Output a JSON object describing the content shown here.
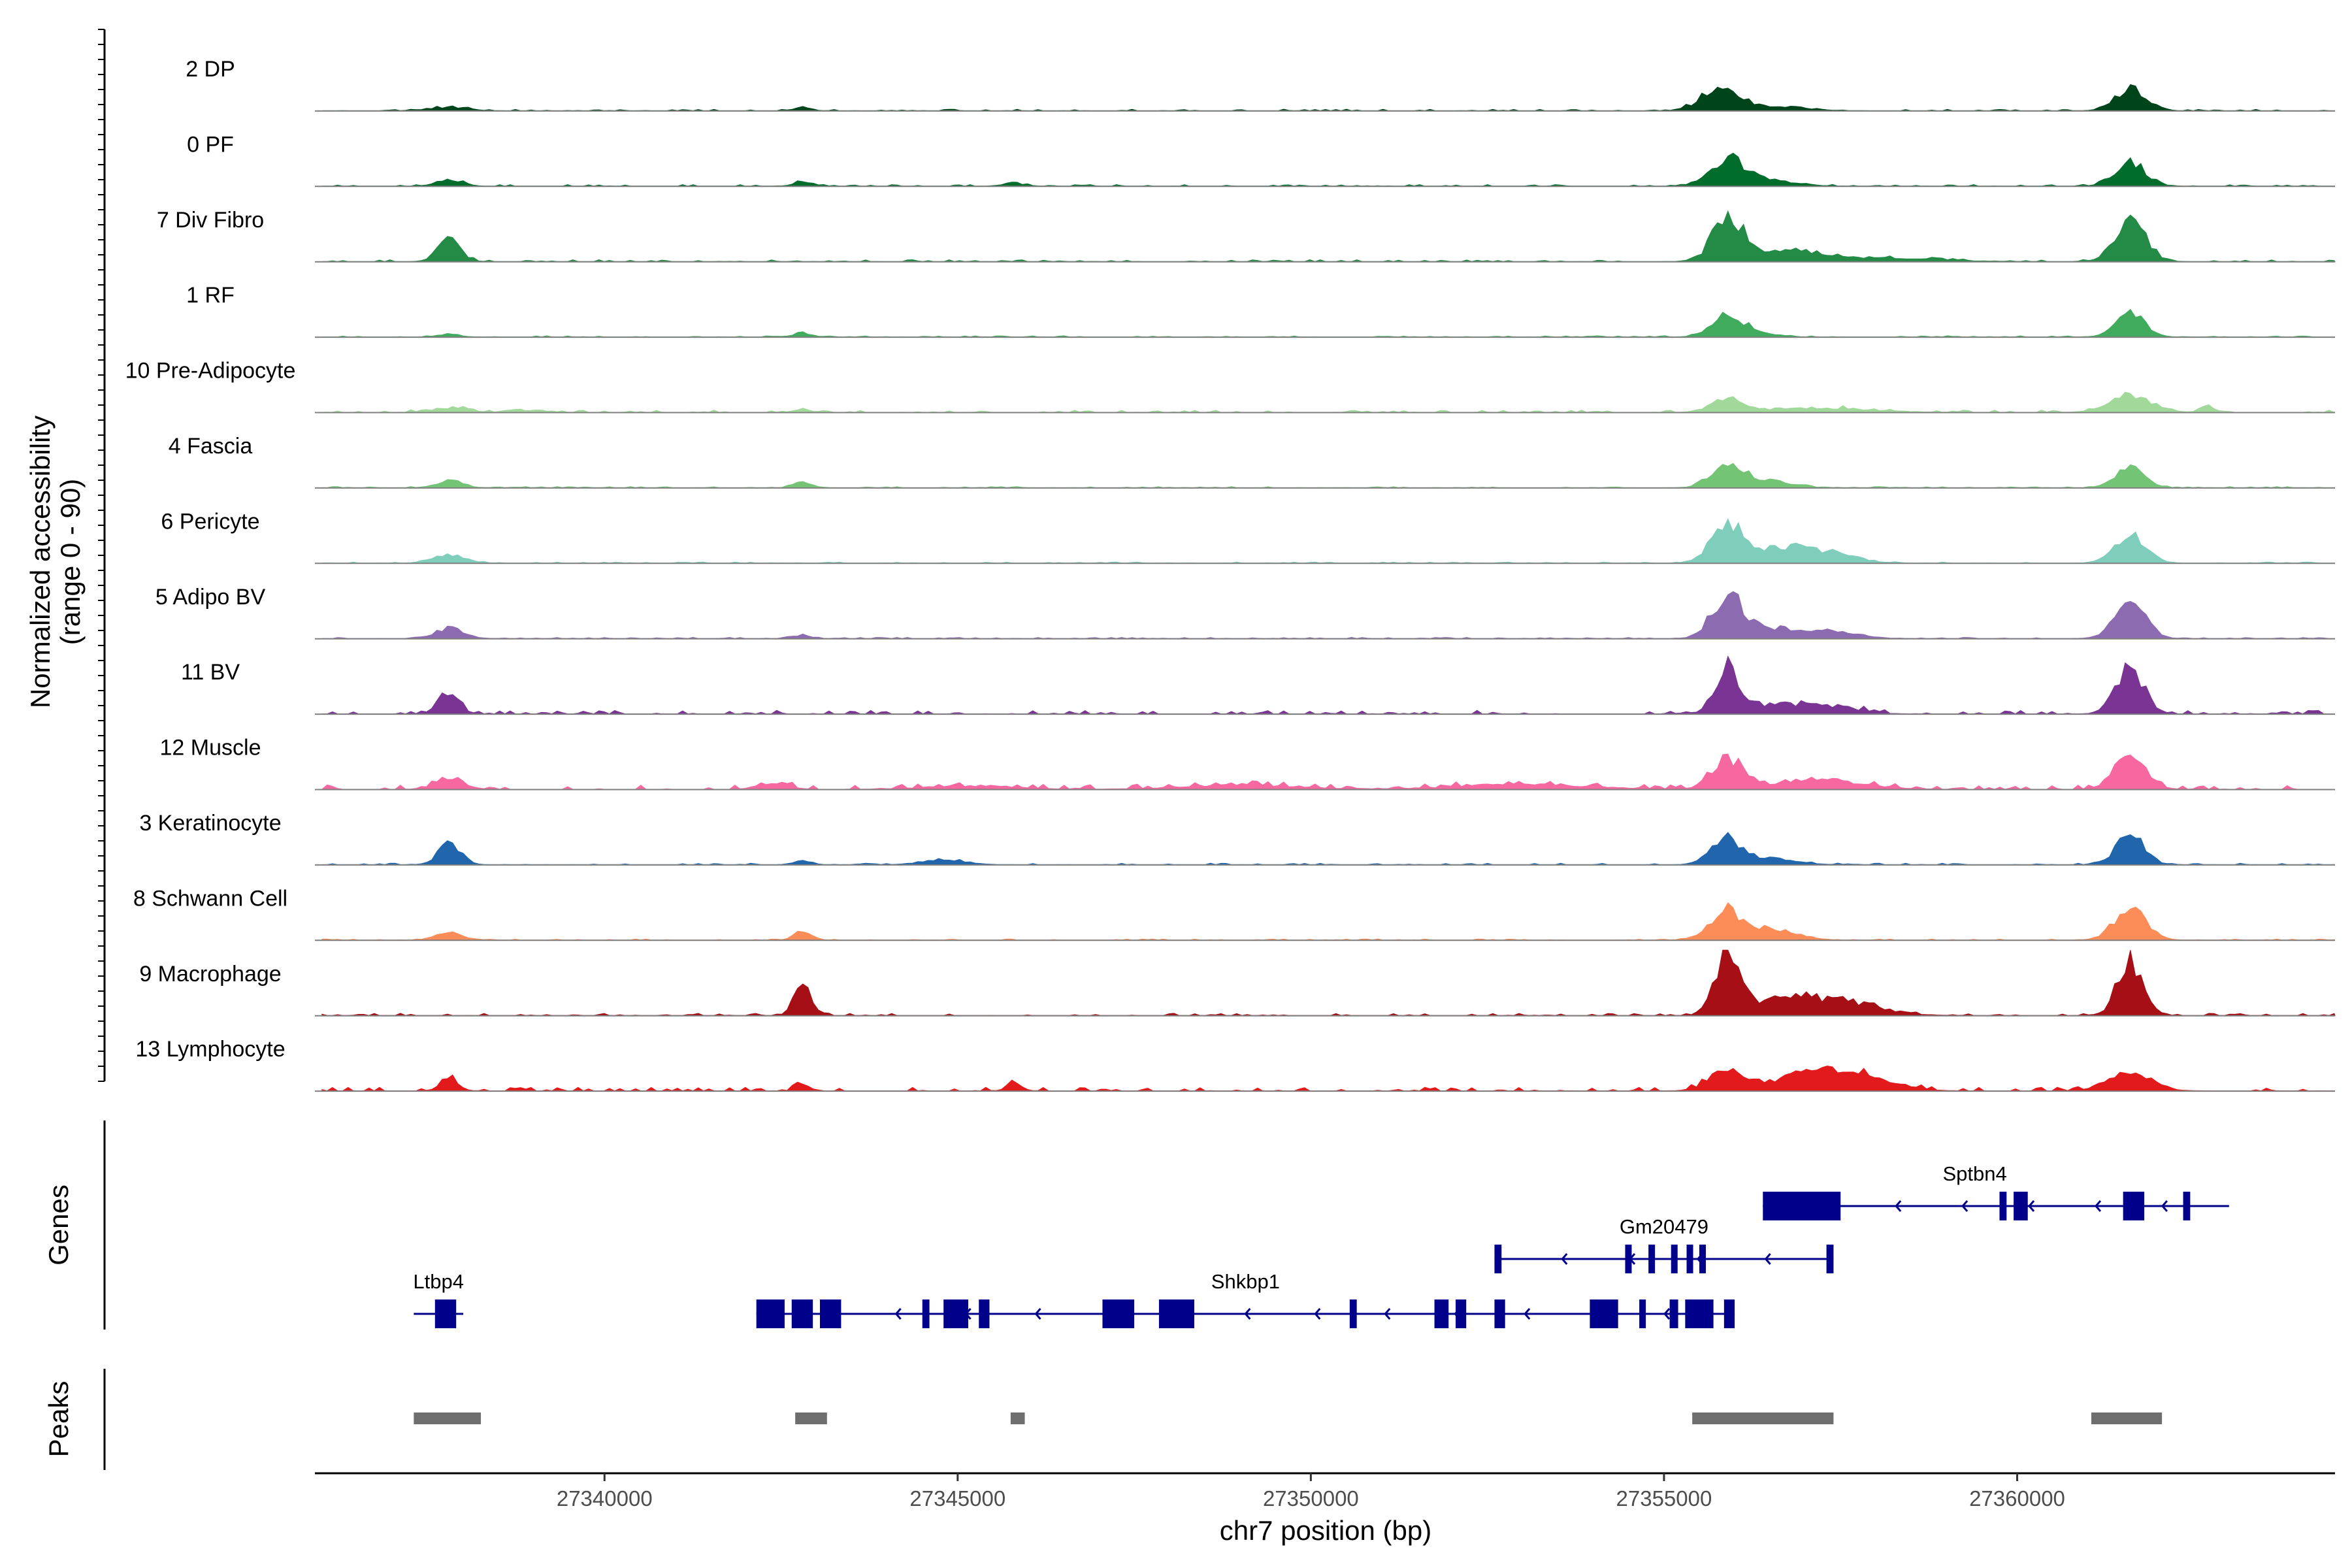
{
  "chart_data": {
    "type": "area",
    "title": "",
    "xlabel": "chr7 position (bp)",
    "ylabel": "Normalized accessibility",
    "ylabel_sub": "(range 0 - 90)",
    "y_range": [
      0,
      90
    ],
    "xlim": [
      27335900,
      27364500
    ],
    "x_ticks": [
      {
        "value": 27340000,
        "label": "27340000"
      },
      {
        "value": 27345000,
        "label": "27345000"
      },
      {
        "value": 27350000,
        "label": "27350000"
      },
      {
        "value": 27355000,
        "label": "27355000"
      },
      {
        "value": 27360000,
        "label": "27360000"
      }
    ],
    "track_start": 27336000,
    "track_end": 27364500,
    "series": [
      {
        "name": "2 DP",
        "color": "#00441B",
        "noise": 2.0,
        "peaks": [
          [
            27337800,
            5,
            250
          ],
          [
            27342800,
            4,
            120
          ],
          [
            27355800,
            32,
            260
          ],
          [
            27356600,
            6,
            400
          ],
          [
            27361600,
            30,
            220
          ]
        ]
      },
      {
        "name": "0 PF",
        "color": "#006D2C",
        "noise": 2.0,
        "peaks": [
          [
            27337800,
            9,
            180
          ],
          [
            27342800,
            6,
            120
          ],
          [
            27345800,
            4,
            150
          ],
          [
            27355900,
            35,
            240
          ],
          [
            27356500,
            8,
            350
          ],
          [
            27361600,
            32,
            220
          ]
        ]
      },
      {
        "name": "7 Div Fibro",
        "color": "#238B45",
        "noise": 2.5,
        "peaks": [
          [
            27337800,
            30,
            160
          ],
          [
            27355900,
            65,
            200
          ],
          [
            27356700,
            14,
            500
          ],
          [
            27358000,
            5,
            800
          ],
          [
            27361600,
            55,
            220
          ]
        ]
      },
      {
        "name": "1 RF",
        "color": "#41AB5D",
        "noise": 1.5,
        "peaks": [
          [
            27337800,
            4,
            150
          ],
          [
            27342800,
            6,
            120
          ],
          [
            27355900,
            28,
            220
          ],
          [
            27356300,
            6,
            250
          ],
          [
            27361600,
            32,
            200
          ]
        ]
      },
      {
        "name": "10 Pre-Adipocyte",
        "color": "#A1D99B",
        "noise": 3.0,
        "peaks": [
          [
            27337800,
            6,
            250
          ],
          [
            27339000,
            3,
            200
          ],
          [
            27342800,
            4,
            120
          ],
          [
            27355900,
            18,
            220
          ],
          [
            27357200,
            6,
            700
          ],
          [
            27361600,
            22,
            300
          ],
          [
            27362700,
            8,
            100
          ]
        ]
      },
      {
        "name": "4 Fascia",
        "color": "#74C476",
        "noise": 1.5,
        "peaks": [
          [
            27337800,
            10,
            180
          ],
          [
            27342800,
            8,
            120
          ],
          [
            27355900,
            38,
            220
          ],
          [
            27356500,
            10,
            300
          ],
          [
            27361600,
            30,
            200
          ]
        ]
      },
      {
        "name": "6 Pericyte",
        "color": "#7FCDBB",
        "noise": 1.5,
        "peaks": [
          [
            27337800,
            12,
            220
          ],
          [
            27355900,
            55,
            230
          ],
          [
            27356700,
            22,
            350
          ],
          [
            27357400,
            12,
            350
          ],
          [
            27361600,
            42,
            220
          ]
        ]
      },
      {
        "name": "5 Adipo BV",
        "color": "#8C6BB1",
        "noise": 1.5,
        "peaks": [
          [
            27337800,
            14,
            200
          ],
          [
            27342800,
            5,
            120
          ],
          [
            27355900,
            60,
            220
          ],
          [
            27356600,
            14,
            350
          ],
          [
            27357400,
            9,
            350
          ],
          [
            27361600,
            48,
            220
          ]
        ]
      },
      {
        "name": "11 BV",
        "color": "#7A3493",
        "noise": 5.0,
        "peaks": [
          [
            27337800,
            32,
            140
          ],
          [
            27355900,
            60,
            180
          ],
          [
            27356600,
            14,
            350
          ],
          [
            27357400,
            10,
            350
          ],
          [
            27361600,
            58,
            200
          ]
        ]
      },
      {
        "name": "12 Muscle",
        "color": "#F768A1",
        "noise": 6.0,
        "peaks": [
          [
            27337800,
            16,
            200
          ],
          [
            27342400,
            10,
            200
          ],
          [
            27345200,
            5,
            600
          ],
          [
            27349000,
            6,
            800
          ],
          [
            27353000,
            7,
            900
          ],
          [
            27355900,
            42,
            220
          ],
          [
            27357200,
            12,
            600
          ],
          [
            27361600,
            45,
            220
          ]
        ]
      },
      {
        "name": "3 Keratinocyte",
        "color": "#2166AC",
        "noise": 2.0,
        "peaks": [
          [
            27337800,
            28,
            160
          ],
          [
            27342800,
            6,
            120
          ],
          [
            27344800,
            7,
            300
          ],
          [
            27355900,
            35,
            220
          ],
          [
            27356600,
            8,
            300
          ],
          [
            27361600,
            40,
            200
          ]
        ]
      },
      {
        "name": "8 Schwann Cell",
        "color": "#FC8D59",
        "noise": 1.5,
        "peaks": [
          [
            27337800,
            10,
            200
          ],
          [
            27342800,
            12,
            120
          ],
          [
            27355900,
            40,
            240
          ],
          [
            27356600,
            15,
            300
          ],
          [
            27361600,
            45,
            220
          ]
        ]
      },
      {
        "name": "9 Macrophage",
        "color": "#A50F15",
        "noise": 3.0,
        "peaks": [
          [
            27342800,
            38,
            120
          ],
          [
            27355900,
            88,
            170
          ],
          [
            27356700,
            22,
            450
          ],
          [
            27357600,
            16,
            500
          ],
          [
            27361600,
            75,
            180
          ]
        ]
      },
      {
        "name": "13 Lymphocyte",
        "color": "#E31A1C",
        "noise": 5.0,
        "peaks": [
          [
            27337800,
            20,
            120
          ],
          [
            27342800,
            8,
            100
          ],
          [
            27345800,
            10,
            100
          ],
          [
            27355900,
            28,
            250
          ],
          [
            27357000,
            22,
            450
          ],
          [
            27357800,
            20,
            450
          ],
          [
            27361600,
            22,
            300
          ]
        ]
      }
    ],
    "genes": [
      {
        "name": "Ltbp4",
        "row": 0,
        "start": 27337300,
        "end": 27338000,
        "strand": "-",
        "exons": [
          [
            27337600,
            27337900
          ]
        ]
      },
      {
        "name": "Shkbp1",
        "row": 0,
        "start": 27342150,
        "end": 27356000,
        "strand": "-",
        "exons": [
          [
            27342150,
            27342550
          ],
          [
            27342650,
            27342950
          ],
          [
            27343050,
            27343350
          ],
          [
            27344500,
            27344600
          ],
          [
            27344800,
            27345150
          ],
          [
            27345300,
            27345450
          ],
          [
            27347050,
            27347500
          ],
          [
            27347850,
            27348350
          ],
          [
            27350550,
            27350650
          ],
          [
            27351750,
            27351950
          ],
          [
            27352050,
            27352200
          ],
          [
            27352600,
            27352750
          ],
          [
            27353950,
            27354350
          ],
          [
            27354650,
            27354720
          ],
          [
            27355080,
            27355200
          ],
          [
            27355300,
            27355700
          ],
          [
            27355850,
            27356000
          ]
        ]
      },
      {
        "name": "Gm20479",
        "row": 1,
        "start": 27352600,
        "end": 27357400,
        "strand": "-",
        "exons": [
          [
            27352600,
            27352700
          ],
          [
            27354450,
            27354520
          ],
          [
            27354780,
            27354850
          ],
          [
            27355100,
            27355180
          ],
          [
            27355320,
            27355400
          ],
          [
            27355500,
            27355560
          ],
          [
            27357300,
            27357400
          ]
        ]
      },
      {
        "name": "Sptbn4",
        "row": 2,
        "start": 27356400,
        "end": 27363000,
        "strand": "-",
        "exons": [
          [
            27356400,
            27357500
          ],
          [
            27359750,
            27359850
          ],
          [
            27359950,
            27360150
          ],
          [
            27361500,
            27361800
          ],
          [
            27362350,
            27362450
          ]
        ]
      }
    ],
    "gene_color": "#00008B",
    "peaks": [
      [
        27337300,
        27338250
      ],
      [
        27342700,
        27343150
      ],
      [
        27345750,
        27345950
      ],
      [
        27355400,
        27357400
      ],
      [
        27361050,
        27362050
      ]
    ],
    "peak_color": "#6E6E6E",
    "panel_labels": [
      "Genes",
      "Peaks"
    ]
  }
}
